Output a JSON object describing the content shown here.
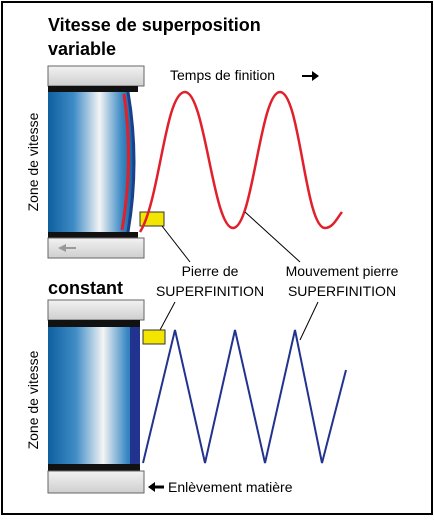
{
  "title": "Vitesse de superposition",
  "variable": {
    "label": "variable",
    "axis_label": "Temps de finition",
    "zone_label": "Zone de vitesse"
  },
  "labels": {
    "stone_line1": "Pierre de",
    "stone_line2": "SUPERFINITION",
    "movement_line1": "Mouvement pierre",
    "movement_line2": "SUPERFINITION"
  },
  "constant": {
    "label": "constant",
    "zone_label": "Zone de vitesse",
    "removal_label": "Enlèvement matière"
  }
}
